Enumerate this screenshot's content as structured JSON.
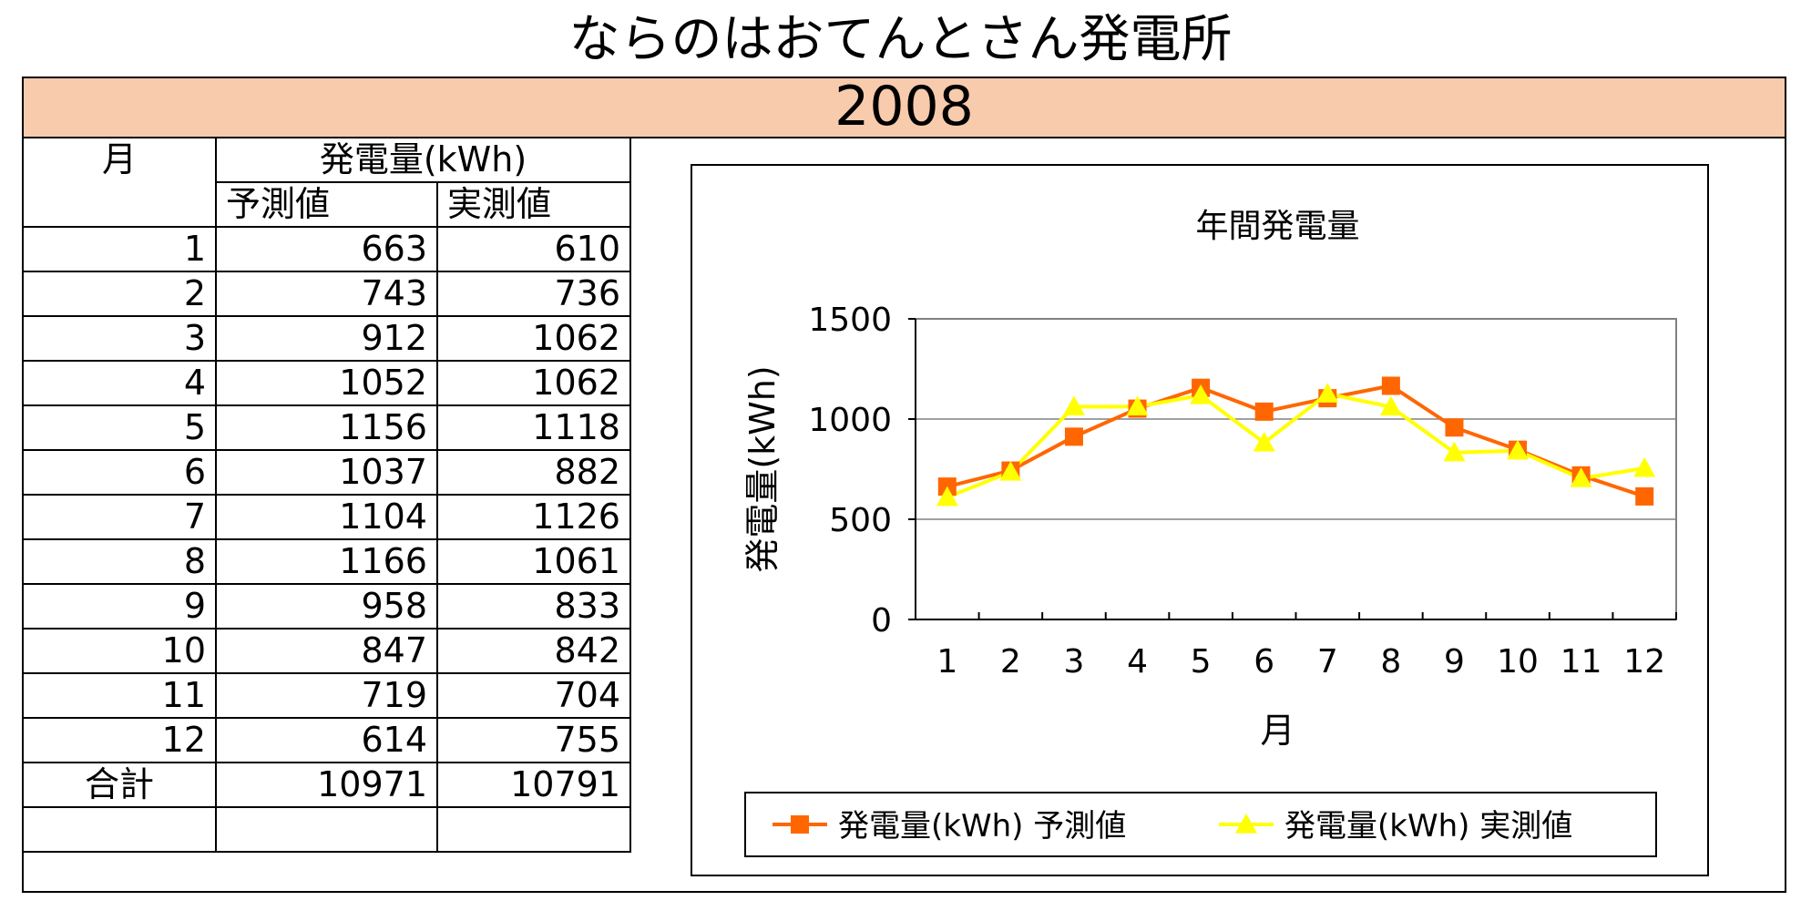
{
  "page": {
    "title": "ならのはおてんとさん発電所",
    "year": "2008"
  },
  "table": {
    "col_month": "月",
    "group_header": "発電量(kWh)",
    "col_forecast": "予測値",
    "col_actual": "実測値",
    "rows": [
      {
        "month": "1",
        "forecast": "663",
        "actual": "610"
      },
      {
        "month": "2",
        "forecast": "743",
        "actual": "736"
      },
      {
        "month": "3",
        "forecast": "912",
        "actual": "1062"
      },
      {
        "month": "4",
        "forecast": "1052",
        "actual": "1062"
      },
      {
        "month": "5",
        "forecast": "1156",
        "actual": "1118"
      },
      {
        "month": "6",
        "forecast": "1037",
        "actual": "882"
      },
      {
        "month": "7",
        "forecast": "1104",
        "actual": "1126"
      },
      {
        "month": "8",
        "forecast": "1166",
        "actual": "1061"
      },
      {
        "month": "9",
        "forecast": "958",
        "actual": "833"
      },
      {
        "month": "10",
        "forecast": "847",
        "actual": "842"
      },
      {
        "month": "11",
        "forecast": "719",
        "actual": "704"
      },
      {
        "month": "12",
        "forecast": "614",
        "actual": "755"
      }
    ],
    "total_label": "合計",
    "total_forecast": "10971",
    "total_actual": "10791"
  },
  "chart_data": {
    "type": "line",
    "title": "年間発電量",
    "xlabel": "月",
    "ylabel": "発電量(kWh)",
    "categories": [
      "1",
      "2",
      "3",
      "4",
      "5",
      "6",
      "7",
      "8",
      "9",
      "10",
      "11",
      "12"
    ],
    "ylim": [
      0,
      1500
    ],
    "yticks": [
      0,
      500,
      1000,
      1500
    ],
    "grid": true,
    "legend_position": "bottom",
    "series": [
      {
        "name": "発電量(kWh) 予測値",
        "marker": "square",
        "color": "#ff6600",
        "values": [
          663,
          743,
          912,
          1052,
          1156,
          1037,
          1104,
          1166,
          958,
          847,
          719,
          614
        ]
      },
      {
        "name": "発電量(kWh) 実測値",
        "marker": "triangle",
        "color": "#ffff00",
        "values": [
          610,
          736,
          1062,
          1062,
          1118,
          882,
          1126,
          1061,
          833,
          842,
          704,
          755
        ]
      }
    ]
  }
}
